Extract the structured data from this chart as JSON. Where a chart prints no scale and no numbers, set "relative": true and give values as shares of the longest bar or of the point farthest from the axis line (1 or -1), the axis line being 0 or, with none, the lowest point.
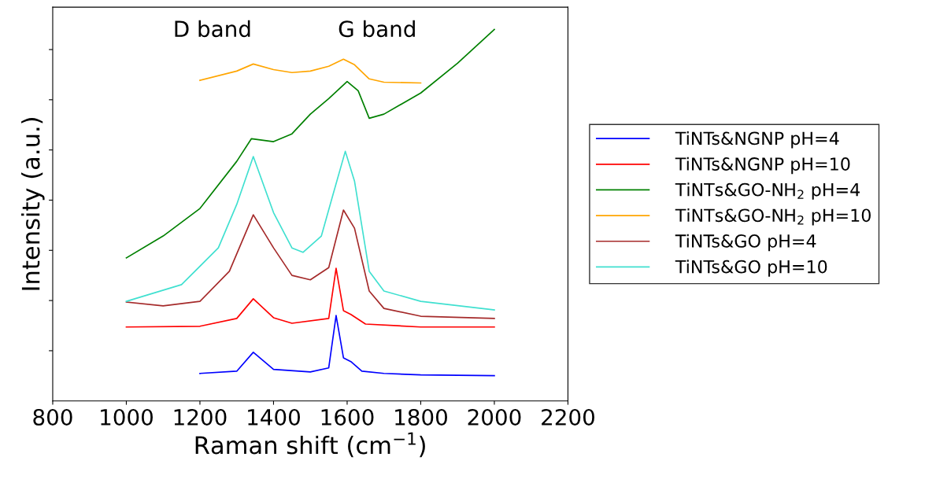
{
  "chart_data": {
    "type": "line",
    "xlabel": "Raman shift (cm$^{−1}$)",
    "ylabel": "Intensity (a.u.)",
    "relative": true,
    "tick_labels": "x",
    "xlim": [
      800,
      2200
    ],
    "xticks": [
      800,
      1000,
      1200,
      1400,
      1600,
      1800,
      2000,
      2200
    ],
    "grid": false,
    "legend": "right",
    "marker": "none",
    "line_style": "solid",
    "annotations": [
      "D band",
      "G band"
    ],
    "series": [
      {
        "name": "TiNTs&NGNP pH=4",
        "color": "#0000ff",
        "x": [
          1200,
          1300,
          1345,
          1400,
          1500,
          1550,
          1570,
          1590,
          1610,
          1640,
          1700,
          1800,
          2000
        ],
        "values": [
          0.074,
          0.08,
          0.131,
          0.085,
          0.078,
          0.089,
          0.23,
          0.116,
          0.106,
          0.08,
          0.074,
          0.07,
          0.068
        ]
      },
      {
        "name": "TiNTs&NGNP pH=10",
        "color": "#ff0000",
        "x": [
          1000,
          1200,
          1300,
          1345,
          1400,
          1450,
          1550,
          1570,
          1590,
          1610,
          1650,
          1800,
          2000
        ],
        "values": [
          0.199,
          0.201,
          0.222,
          0.275,
          0.224,
          0.209,
          0.222,
          0.357,
          0.243,
          0.233,
          0.207,
          0.199,
          0.199
        ]
      },
      {
        "name": "TiNTs&GO-NH$_{2}$ pH=4",
        "color": "#008000",
        "x": [
          1000,
          1100,
          1200,
          1300,
          1340,
          1400,
          1450,
          1500,
          1550,
          1600,
          1630,
          1660,
          1700,
          1800,
          1900,
          2000
        ],
        "values": [
          0.385,
          0.444,
          0.518,
          0.645,
          0.706,
          0.698,
          0.719,
          0.772,
          0.814,
          0.86,
          0.835,
          0.761,
          0.772,
          0.829,
          0.909,
          1.0
        ]
      },
      {
        "name": "TiNTs&GO-NH$_{2}$ pH=10",
        "color": "#ffa500",
        "x": [
          1200,
          1300,
          1345,
          1400,
          1450,
          1500,
          1550,
          1590,
          1620,
          1660,
          1700,
          1800
        ],
        "values": [
          0.863,
          0.888,
          0.907,
          0.892,
          0.884,
          0.888,
          0.901,
          0.92,
          0.905,
          0.867,
          0.858,
          0.856
        ]
      },
      {
        "name": "TiNTs&GO pH=4",
        "color": "#a52a2a",
        "x": [
          1000,
          1100,
          1200,
          1280,
          1345,
          1400,
          1450,
          1500,
          1550,
          1590,
          1620,
          1660,
          1700,
          1800,
          2000
        ],
        "values": [
          0.266,
          0.256,
          0.268,
          0.349,
          0.501,
          0.412,
          0.338,
          0.326,
          0.359,
          0.514,
          0.465,
          0.296,
          0.249,
          0.228,
          0.222
        ]
      },
      {
        "name": "TiNTs&GO pH=10",
        "color": "#40e0d0",
        "x": [
          1000,
          1150,
          1250,
          1300,
          1345,
          1400,
          1450,
          1480,
          1530,
          1560,
          1595,
          1620,
          1660,
          1700,
          1800,
          2000
        ],
        "values": [
          0.268,
          0.313,
          0.412,
          0.529,
          0.658,
          0.507,
          0.412,
          0.4,
          0.444,
          0.55,
          0.672,
          0.592,
          0.349,
          0.296,
          0.268,
          0.245
        ]
      }
    ]
  }
}
